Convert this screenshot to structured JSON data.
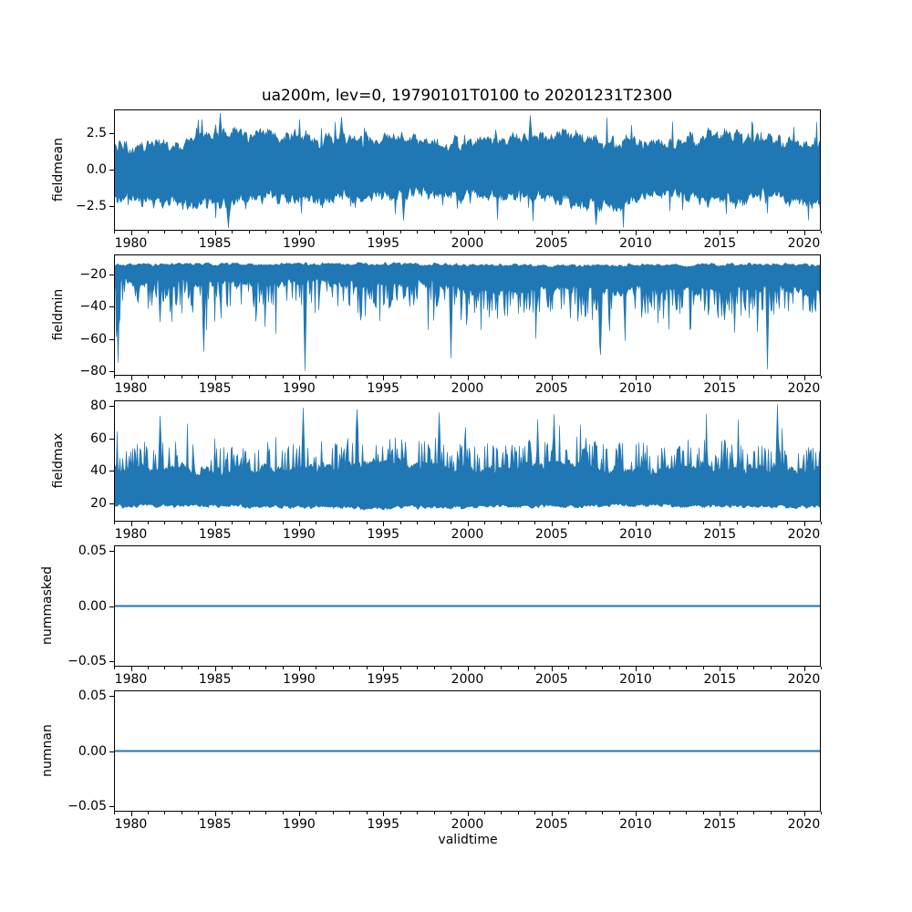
{
  "chart_data": {
    "type": "line",
    "title": "ua200m, lev=0, 19790101T0100 to 20201231T2300",
    "xlabel": "validtime",
    "line_color": "#1f77b4",
    "x_axis": {
      "lim": [
        1979,
        2021
      ],
      "minor_tick_step_years": 1,
      "major_ticks": [
        {
          "v": 1980,
          "label": "1980"
        },
        {
          "v": 1985,
          "label": "1985"
        },
        {
          "v": 1990,
          "label": "1990"
        },
        {
          "v": 1995,
          "label": "1995"
        },
        {
          "v": 2000,
          "label": "2000"
        },
        {
          "v": 2005,
          "label": "2005"
        },
        {
          "v": 2010,
          "label": "2010"
        },
        {
          "v": 2015,
          "label": "2015"
        },
        {
          "v": 2020,
          "label": "2020"
        }
      ]
    },
    "subplots": [
      {
        "ylabel": "fieldmean",
        "ylim": [
          -4.2,
          4.1
        ],
        "yticks": [
          {
            "v": 2.5,
            "label": "2.5"
          },
          {
            "v": 0.0,
            "label": "0.0"
          },
          {
            "v": -2.5,
            "label": "−2.5"
          }
        ],
        "band_typical": [
          -2.2,
          2.2
        ],
        "extremes": [
          -4.0,
          3.85
        ],
        "notable": [
          {
            "year": 1985.3,
            "value": 3.85,
            "edge": "top"
          },
          {
            "year": 1992.5,
            "value": 3.6,
            "edge": "top"
          },
          {
            "year": 2003.7,
            "value": 3.7,
            "edge": "top"
          },
          {
            "year": 1985.8,
            "value": -4.0,
            "edge": "bot"
          },
          {
            "year": 1996.2,
            "value": -3.5,
            "edge": "bot"
          },
          {
            "year": 2007.6,
            "value": -3.8,
            "edge": "bot"
          }
        ],
        "render": {
          "mode": "band",
          "seed": 7,
          "top": {
            "base": 0.85,
            "slow": 1.0,
            "fast": 0.85,
            "jit": 0.5,
            "spikeP": 0.02,
            "spike": 1.5,
            "max": 3.85
          },
          "bot": {
            "base": -0.95,
            "slow": -1.0,
            "fast": -0.85,
            "jit": -0.5,
            "spikeP": 0.02,
            "spike": -1.6,
            "min": -4.0
          }
        }
      },
      {
        "ylabel": "fieldmin",
        "ylim": [
          -83,
          -7.5
        ],
        "yticks": [
          {
            "v": -20,
            "label": "−20"
          },
          {
            "v": -40,
            "label": "−40"
          },
          {
            "v": -60,
            "label": "−60"
          },
          {
            "v": -80,
            "label": "−80"
          }
        ],
        "band_typical": [
          -30,
          -12
        ],
        "extremes": [
          -80,
          -11.8
        ],
        "notable": [
          {
            "year": 1979.2,
            "value": -75,
            "edge": "bot"
          },
          {
            "year": 1984.3,
            "value": -68,
            "edge": "bot"
          },
          {
            "year": 1990.3,
            "value": -80,
            "edge": "bot"
          },
          {
            "year": 1999.0,
            "value": -72,
            "edge": "bot"
          },
          {
            "year": 2007.9,
            "value": -70,
            "edge": "bot"
          },
          {
            "year": 2017.8,
            "value": -79,
            "edge": "bot"
          }
        ],
        "render": {
          "mode": "band",
          "seed": 13,
          "top": {
            "base": -12.2,
            "slow": -1.2,
            "fast": -1.8,
            "jit": -0.8,
            "max": -11.7
          },
          "bot": {
            "base": -21,
            "slow": -6,
            "fast": -5,
            "jit": -3,
            "spikeP": 0.33,
            "spike": -16,
            "spike2P": 0.05,
            "spike2": -26,
            "min": -80
          }
        }
      },
      {
        "ylabel": "fieldmax",
        "ylim": [
          8.5,
          83.5
        ],
        "yticks": [
          {
            "v": 80,
            "label": "80"
          },
          {
            "v": 60,
            "label": "60"
          },
          {
            "v": 40,
            "label": "40"
          },
          {
            "v": 20,
            "label": "20"
          }
        ],
        "band_typical": [
          16,
          45
        ],
        "extremes": [
          14,
          81
        ],
        "notable": [
          {
            "year": 1981.7,
            "value": 74,
            "edge": "top"
          },
          {
            "year": 1990.2,
            "value": 79,
            "edge": "top"
          },
          {
            "year": 1993.4,
            "value": 78,
            "edge": "top"
          },
          {
            "year": 1998.3,
            "value": 76,
            "edge": "top"
          },
          {
            "year": 2005.1,
            "value": 75,
            "edge": "top"
          },
          {
            "year": 2018.4,
            "value": 81,
            "edge": "top"
          }
        ],
        "render": {
          "mode": "band",
          "seed": 21,
          "top": {
            "base": 34,
            "slow": 7,
            "fast": 6,
            "jit": 3,
            "spikeP": 0.3,
            "spike": 16,
            "spike2P": 0.06,
            "spike2": 20,
            "max": 80.5
          },
          "bot": {
            "base": 15.3,
            "slow": 2.0,
            "fast": 2.0,
            "jit": 1.2,
            "min": 14
          }
        }
      },
      {
        "ylabel": "nummasked",
        "ylim": [
          -0.055,
          0.055
        ],
        "yticks": [
          {
            "v": 0.05,
            "label": "0.05"
          },
          {
            "v": 0.0,
            "label": "0.00"
          },
          {
            "v": -0.05,
            "label": "−0.05"
          }
        ],
        "constant_value": 0,
        "render": {
          "mode": "hline"
        }
      },
      {
        "ylabel": "numnan",
        "ylim": [
          -0.055,
          0.055
        ],
        "yticks": [
          {
            "v": 0.05,
            "label": "0.05"
          },
          {
            "v": 0.0,
            "label": "0.00"
          },
          {
            "v": -0.05,
            "label": "−0.05"
          }
        ],
        "constant_value": 0,
        "render": {
          "mode": "hline"
        }
      }
    ]
  }
}
